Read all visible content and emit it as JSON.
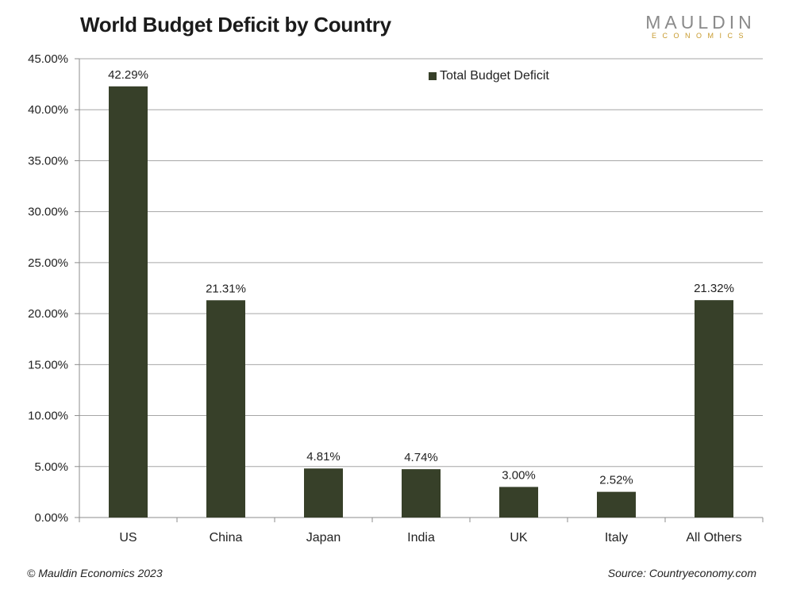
{
  "header": {
    "title": "World Budget Deficit by Country",
    "logo_main": "MAULDIN",
    "logo_sub": "ECONOMICS"
  },
  "footer": {
    "copyright": "© Mauldin Economics 2023",
    "source": "Source: Countryeconomy.com"
  },
  "colors": {
    "bar": "#374029",
    "grid": "#a6a6a6",
    "axis": "#8c8c8c"
  },
  "chart_data": {
    "type": "bar",
    "title": "World Budget Deficit by Country",
    "xlabel": "",
    "ylabel": "",
    "categories": [
      "US",
      "China",
      "Japan",
      "India",
      "UK",
      "Italy",
      "All Others"
    ],
    "series": [
      {
        "name": "Total Budget Deficit",
        "values": [
          42.29,
          21.31,
          4.81,
          4.74,
          3.0,
          2.52,
          21.32
        ],
        "labels": [
          "42.29%",
          "21.31%",
          "4.81%",
          "4.74%",
          "3.00%",
          "2.52%",
          "21.32%"
        ]
      }
    ],
    "ylim": [
      0,
      45
    ],
    "yticks": [
      0,
      5,
      10,
      15,
      20,
      25,
      30,
      35,
      40,
      45
    ],
    "ytick_labels": [
      "0.00%",
      "5.00%",
      "10.00%",
      "15.00%",
      "20.00%",
      "25.00%",
      "30.00%",
      "35.00%",
      "40.00%",
      "45.00%"
    ],
    "grid": true,
    "legend": "top-center"
  }
}
